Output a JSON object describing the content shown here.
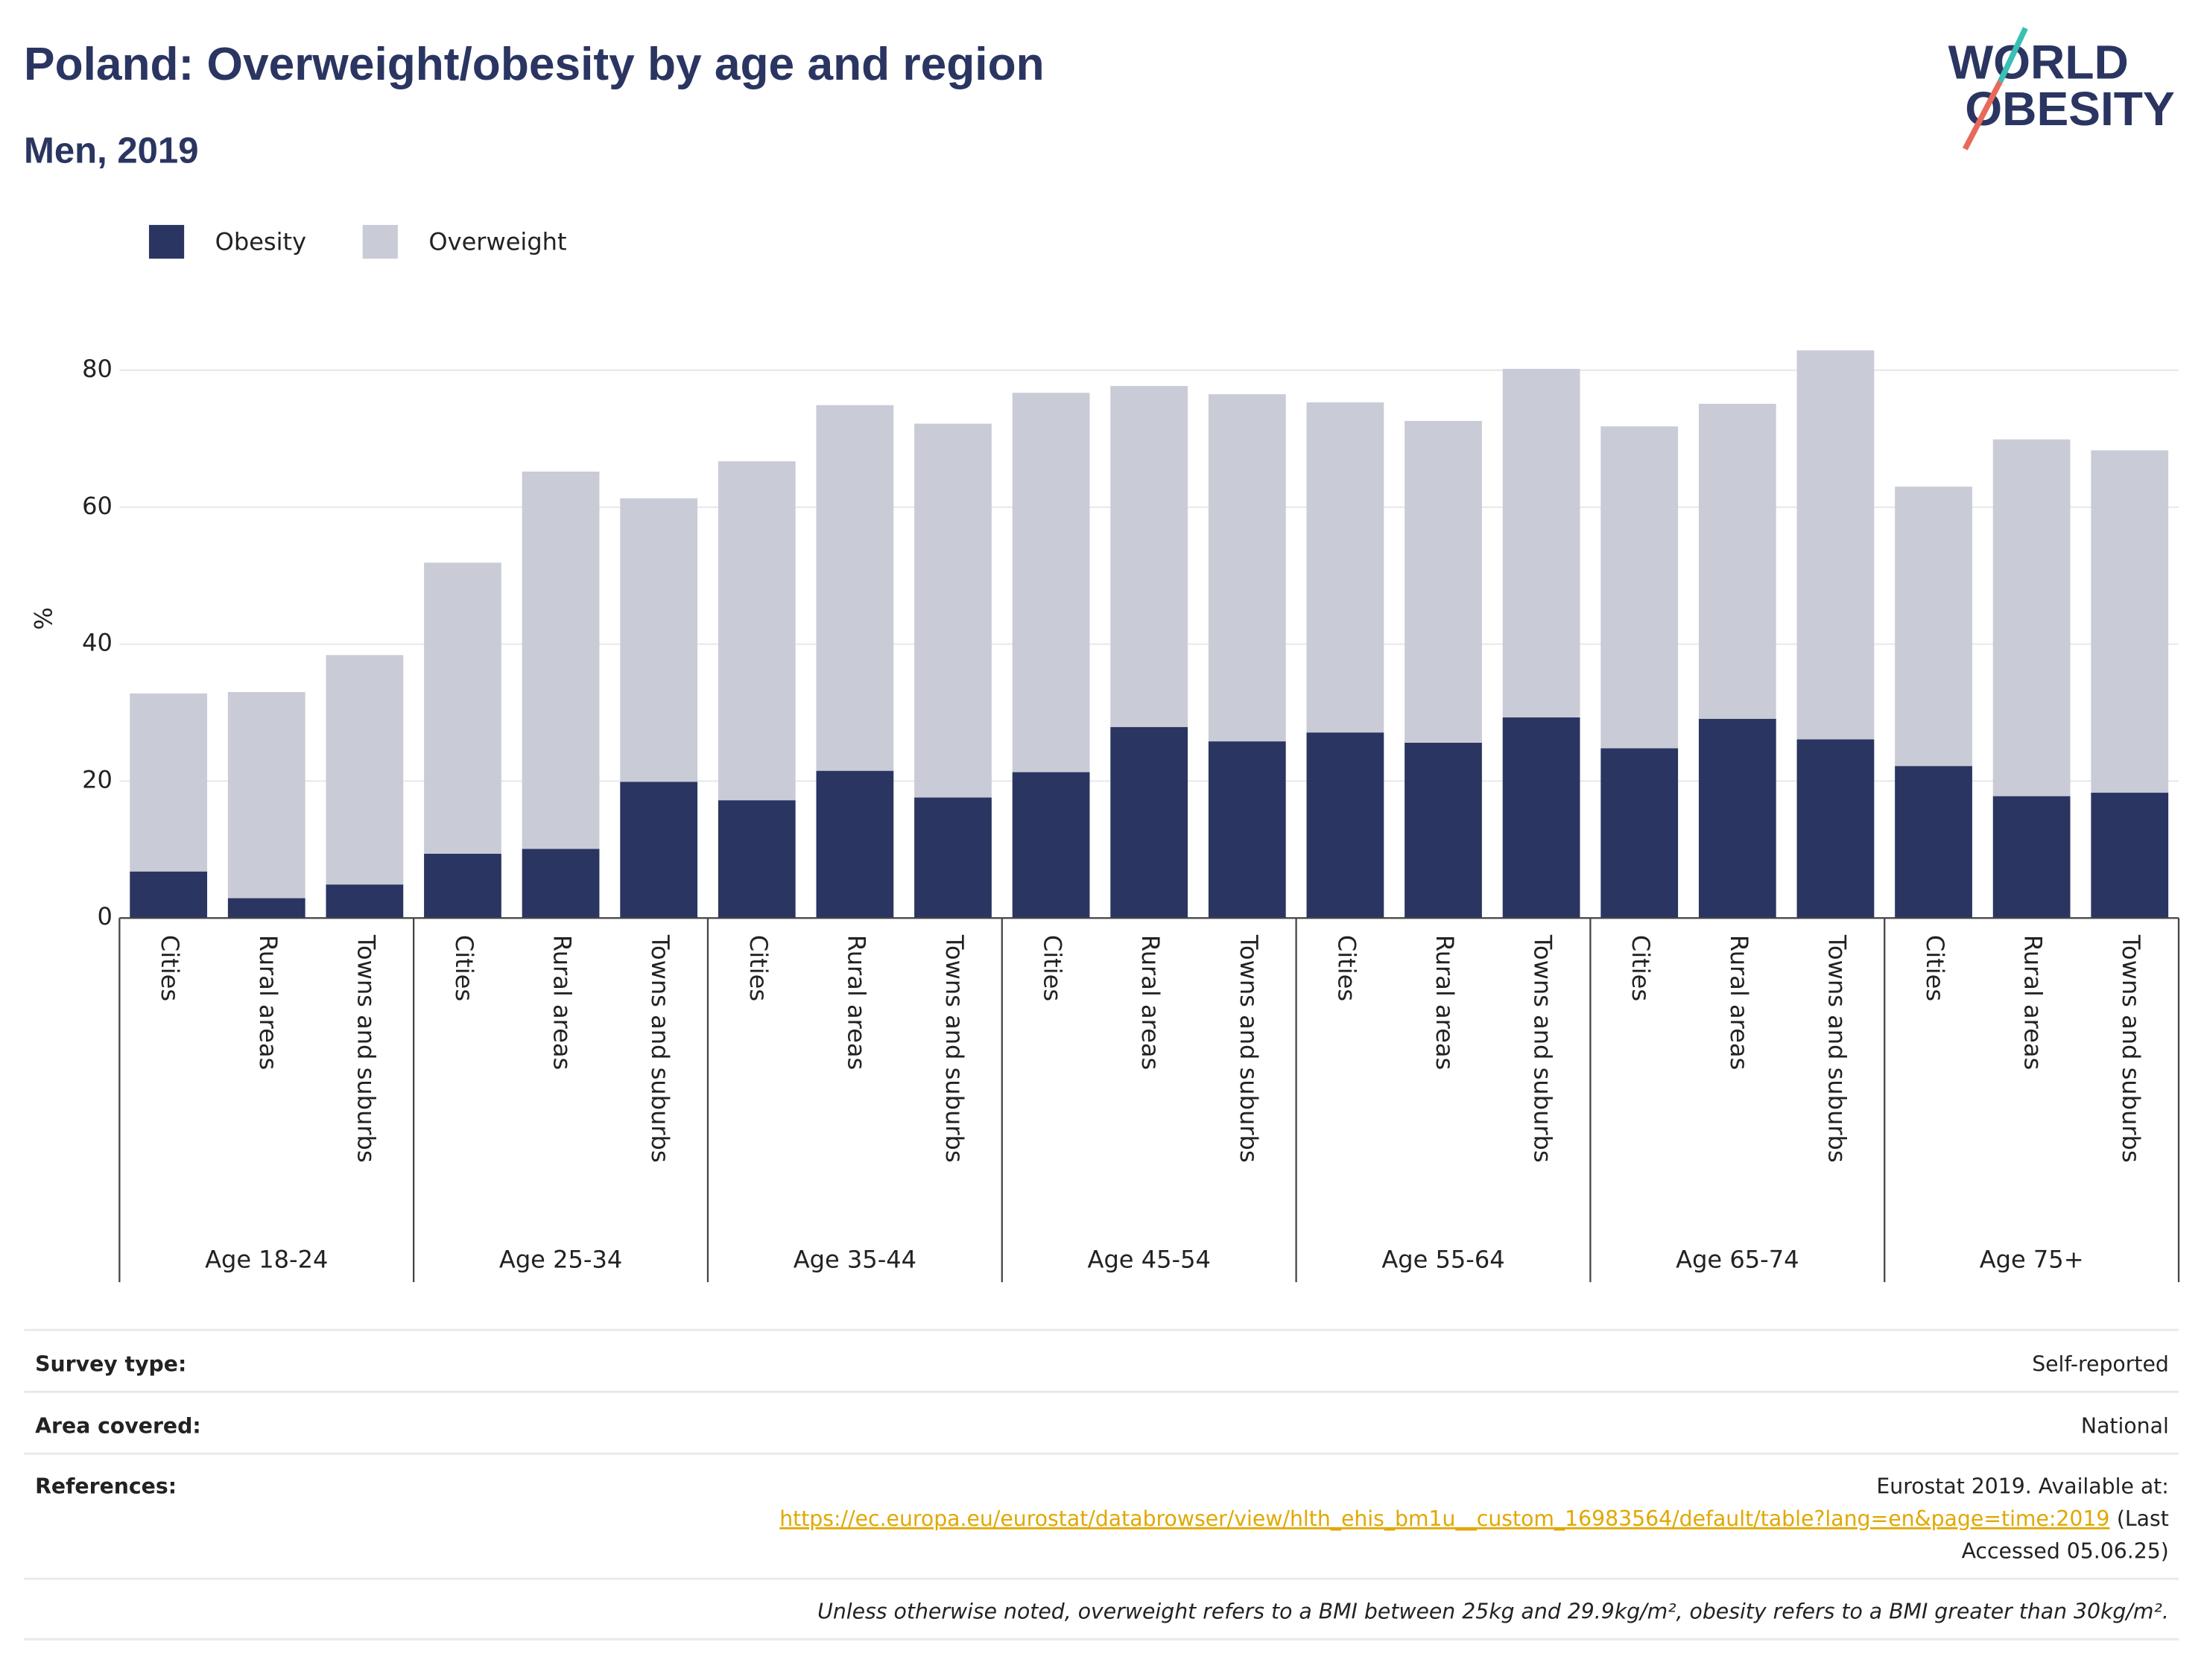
{
  "chart_data": {
    "type": "stacked_bar",
    "title": "Poland: Overweight/obesity by age and region",
    "subtitle": "Men, 2019",
    "y_label": "%",
    "categories": [
      "Cities",
      "Rural areas",
      "Towns and suburbs",
      "Cities",
      "Rural areas",
      "Towns and suburbs",
      "Cities",
      "Rural areas",
      "Towns and suburbs",
      "Cities",
      "Rural areas",
      "Towns and suburbs",
      "Cities",
      "Rural areas",
      "Towns and suburbs",
      "Cities",
      "Rural areas",
      "Towns and suburbs",
      "Cities",
      "Rural areas",
      "Towns and suburbs"
    ],
    "groups": [
      "Age 18-24",
      "Age 25-34",
      "Age 35-44",
      "Age 45-54",
      "Age 55-64",
      "Age 65-74",
      "Age 75+"
    ],
    "series": [
      {
        "name": "Obesity",
        "color": "#2a3561",
        "values": [
          6.8,
          2.9,
          4.9,
          9.4,
          10.1,
          19.9,
          17.2,
          21.5,
          17.6,
          21.3,
          27.9,
          25.8,
          27.1,
          25.6,
          29.3,
          24.8,
          29.1,
          26.1,
          22.2,
          17.8,
          18.3
        ]
      },
      {
        "name": "Overweight",
        "color": "#c9cbd6",
        "values": [
          26.0,
          30.1,
          33.5,
          42.5,
          55.1,
          41.4,
          49.5,
          53.4,
          54.6,
          55.4,
          49.8,
          50.7,
          48.2,
          47.0,
          50.9,
          47.0,
          46.0,
          56.8,
          40.8,
          52.1,
          50.0
        ]
      }
    ],
    "ylim": [
      0,
      85
    ],
    "yticks": [
      0,
      20,
      40,
      60,
      80
    ],
    "grid": true,
    "legend": "top-left"
  },
  "logo": {
    "line1": "WORLD",
    "line2": "OBESITY"
  },
  "footer": {
    "rows": [
      {
        "label": "Survey type:",
        "value": "Self-reported"
      },
      {
        "label": "Area covered:",
        "value": "National"
      }
    ],
    "references": {
      "label": "References:",
      "line1": "Eurostat 2019. Available at:",
      "link": "https://ec.europa.eu/eurostat/databrowser/view/hlth_ehis_bm1u__custom_16983564/default/table?lang=en&page=time:2019",
      "after_link": "(Last",
      "line3": "Accessed 05.06.25)"
    },
    "note": "Unless otherwise noted, overweight refers to a BMI between 25kg and 29.9kg/m², obesity refers to a BMI greater than 30kg/m²."
  }
}
